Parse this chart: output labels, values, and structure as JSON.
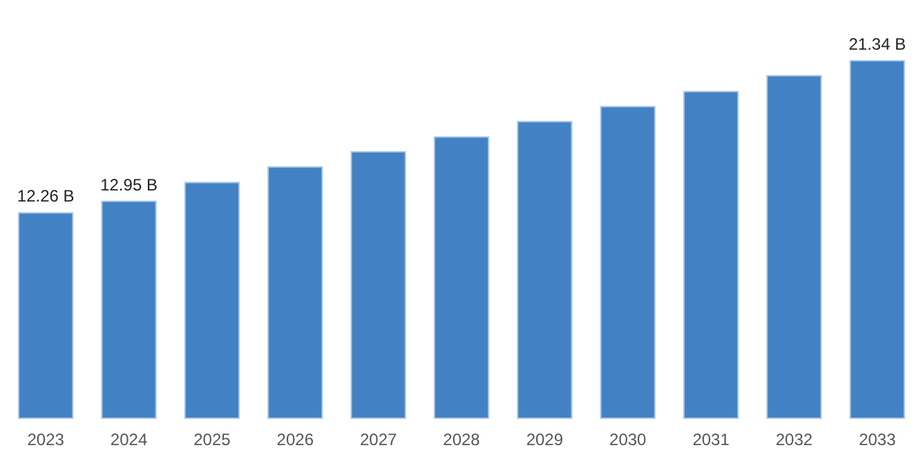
{
  "chart_data": {
    "type": "bar",
    "categories": [
      "2023",
      "2024",
      "2025",
      "2026",
      "2027",
      "2028",
      "2029",
      "2030",
      "2031",
      "2032",
      "2033"
    ],
    "values": [
      12.26,
      12.95,
      14.07,
      15.0,
      15.9,
      16.79,
      17.7,
      18.6,
      19.5,
      20.44,
      21.34
    ],
    "value_labels": [
      "12.26 B",
      "12.95 B",
      null,
      null,
      null,
      null,
      null,
      null,
      null,
      null,
      "21.34 B"
    ],
    "color": "#4282c4",
    "tick_labels": "x",
    "grid": false
  }
}
